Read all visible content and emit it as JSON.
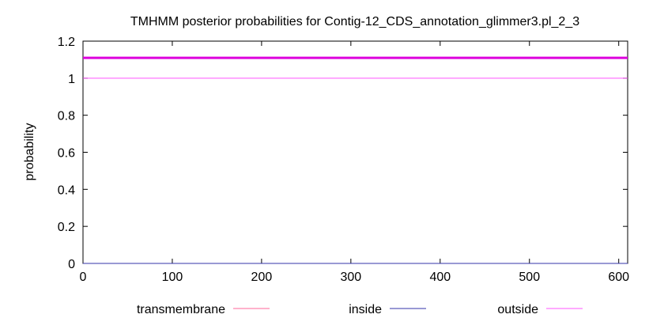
{
  "chart_data": {
    "type": "line",
    "title": "TMHMM posterior probabilities for Contig-12_CDS_annotation_glimmer3.pl_2_3",
    "xlabel": "",
    "ylabel": "probability",
    "xlim": [
      0,
      610
    ],
    "ylim": [
      0,
      1.2
    ],
    "x_ticks": [
      "0",
      "100",
      "200",
      "300",
      "400",
      "500",
      "600"
    ],
    "y_ticks": [
      "0",
      "0.2",
      "0.4",
      "0.6",
      "0.8",
      "1",
      "1.2"
    ],
    "grid": false,
    "legend_position": "bottom",
    "series": [
      {
        "name": "transmembrane",
        "color": "#ff6699",
        "x": [
          0,
          610
        ],
        "y": [
          0,
          0
        ]
      },
      {
        "name": "inside",
        "color": "#3333aa",
        "x": [
          0,
          610
        ],
        "y": [
          0,
          0
        ]
      },
      {
        "name": "outside",
        "color": "#ff55ff",
        "x": [
          0,
          610
        ],
        "y": [
          1,
          1
        ]
      }
    ],
    "annotations": [
      {
        "type": "bar",
        "label": "",
        "color": "#dd00dd",
        "y": 1.11,
        "x_range": [
          0,
          610
        ]
      }
    ]
  }
}
